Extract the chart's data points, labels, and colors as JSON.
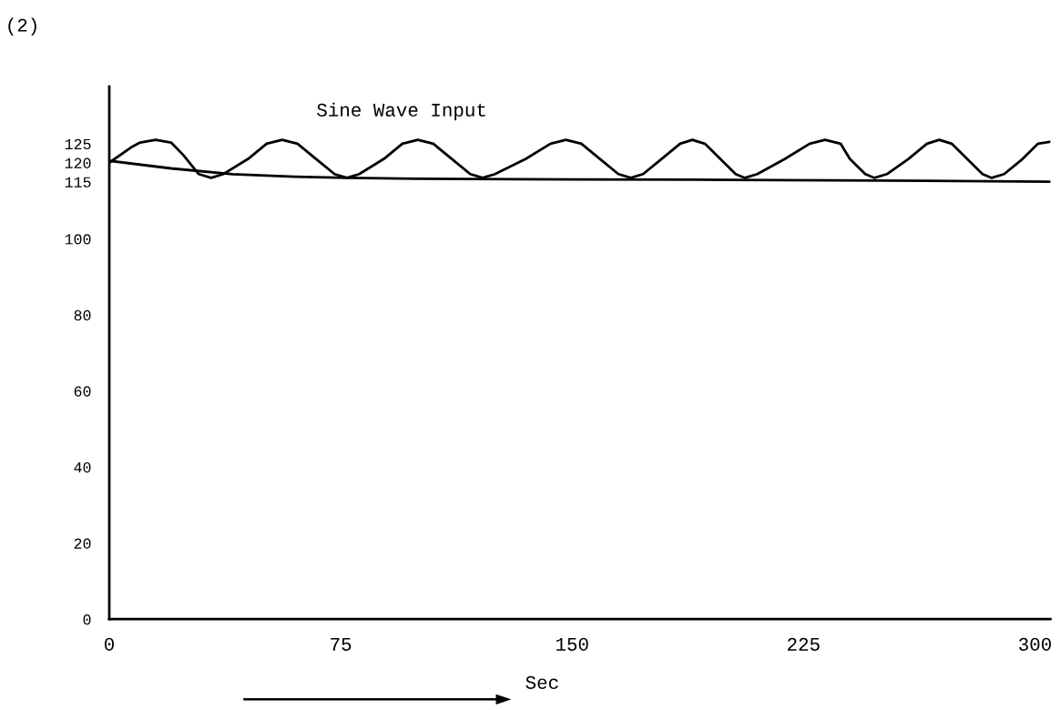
{
  "chart_data": {
    "type": "line",
    "title": "Sine Wave Input",
    "xlabel": "Sec",
    "annotations": [
      "(2)"
    ],
    "xlim": [
      0,
      305
    ],
    "xticks": [
      0,
      75,
      150,
      225,
      300
    ],
    "ylim": [
      0,
      140
    ],
    "yticks": [
      0,
      20,
      40,
      60,
      80,
      100,
      115,
      120,
      125
    ],
    "grid": false,
    "marker": "none",
    "line_style": "solid",
    "series": [
      {
        "color": "#000000",
        "x": [
          0,
          7,
          10,
          15,
          20,
          24,
          29,
          33,
          37,
          45,
          51,
          56,
          61,
          67,
          73,
          77,
          81,
          89,
          95,
          100,
          105,
          111,
          117,
          121,
          125,
          135,
          143,
          148,
          153,
          159,
          165,
          169,
          173,
          179,
          185,
          189,
          193,
          198,
          203,
          206,
          210,
          219,
          227,
          232,
          237,
          240,
          245,
          248,
          252,
          259,
          265,
          269,
          273,
          278,
          283,
          286,
          290,
          296,
          301,
          305
        ],
        "values": [
          120,
          124,
          125.3,
          126,
          125.3,
          122,
          117,
          116,
          117,
          121,
          125,
          126,
          125,
          121,
          117,
          116,
          117,
          121,
          125,
          126,
          125,
          121,
          117,
          116,
          117,
          121,
          125,
          126,
          125,
          121,
          117,
          116,
          117,
          121,
          125,
          126,
          125,
          121,
          117,
          116,
          117,
          121,
          125,
          126,
          125,
          121,
          117,
          116,
          117,
          121,
          125,
          126,
          125,
          121,
          117,
          116,
          117,
          121,
          125,
          125.5
        ]
      },
      {
        "color": "#000000",
        "x": [
          0,
          20,
          40,
          60,
          77,
          100,
          150,
          200,
          250,
          305
        ],
        "values": [
          120.5,
          118.5,
          117,
          116.3,
          116,
          115.8,
          115.6,
          115.5,
          115.3,
          115
        ]
      }
    ]
  }
}
